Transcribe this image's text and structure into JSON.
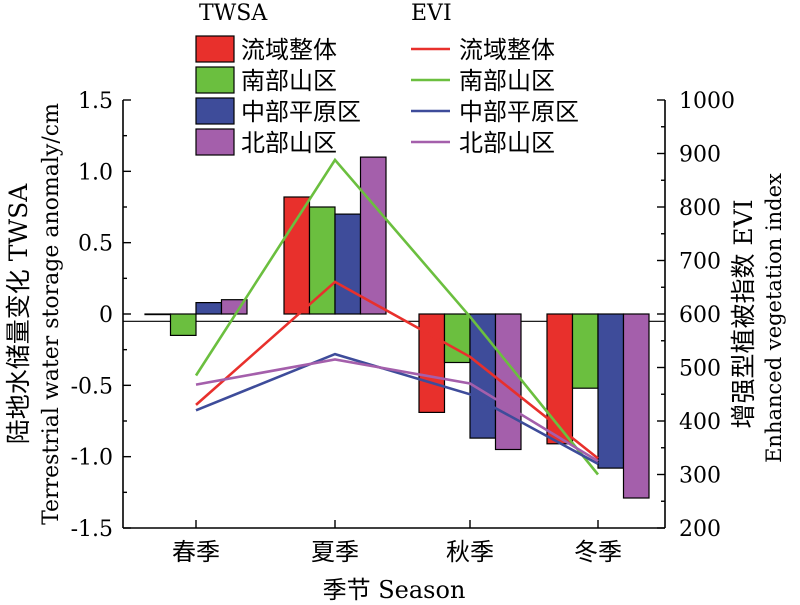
{
  "chart_data": {
    "type": "bar",
    "categories": [
      "春季",
      "夏季",
      "秋季",
      "冬季"
    ],
    "bar_group_title": "TWSA",
    "line_group_title": "EVI",
    "bar_series": [
      {
        "name": "流域整体",
        "color": "#e8302c",
        "values": [
          0.0,
          0.82,
          -0.69,
          -0.91
        ]
      },
      {
        "name": "南部山区",
        "color": "#6bbf3f",
        "values": [
          -0.15,
          0.75,
          -0.34,
          -0.52
        ]
      },
      {
        "name": "中部平原区",
        "color": "#3e4c9a",
        "values": [
          0.08,
          0.7,
          -0.87,
          -1.08
        ]
      },
      {
        "name": "北部山区",
        "color": "#a45fab",
        "values": [
          0.1,
          1.1,
          -0.95,
          -1.29
        ]
      }
    ],
    "line_series": [
      {
        "name": "流域整体",
        "color": "#e8302c",
        "values": [
          430,
          660,
          520,
          330
        ]
      },
      {
        "name": "南部山区",
        "color": "#6bbf3f",
        "values": [
          485,
          888,
          595,
          300
        ]
      },
      {
        "name": "中部平原区",
        "color": "#3e4c9a",
        "values": [
          420,
          525,
          450,
          320
        ]
      },
      {
        "name": "北部山区",
        "color": "#a45fab",
        "values": [
          468,
          515,
          470,
          325
        ]
      }
    ],
    "left_axis": {
      "label_cn": "陆地水储量变化 TWSA",
      "label_en": "Terrestrial water storage anomaly/cm",
      "range": [
        -1.5,
        1.5
      ],
      "ticks": [
        -1.5,
        -1.0,
        -0.5,
        0,
        0.5,
        1.0,
        1.5
      ],
      "tick_labels": [
        "-1.5",
        "-1.0",
        "-0.5",
        "0",
        "0.5",
        "1.0",
        "1.5"
      ]
    },
    "right_axis": {
      "label_cn": "增强型植被指数 EVI",
      "label_en": "Enhanced vegetation index",
      "range": [
        200,
        1000
      ],
      "ticks": [
        200,
        300,
        400,
        500,
        600,
        700,
        800,
        900,
        1000
      ],
      "tick_labels": [
        "200",
        "300",
        "400",
        "500",
        "600",
        "700",
        "800",
        "900",
        "1000"
      ]
    },
    "x_axis": {
      "label": "季节 Season"
    }
  }
}
